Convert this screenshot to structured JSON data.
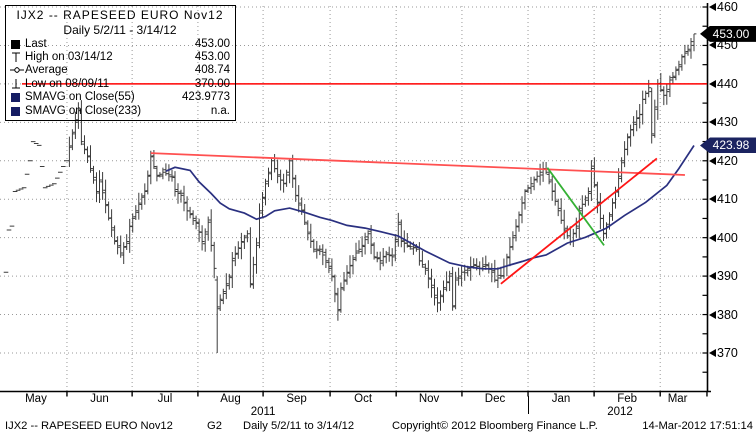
{
  "legend": {
    "title": "IJX2 -- RAPESEED  EURO  Nov12",
    "subtitle": "Daily 5/2/11 - 3/14/12",
    "rows": [
      {
        "marker": "last",
        "label": "Last",
        "value": "453.00"
      },
      {
        "marker": "high",
        "label": "High on 03/14/12",
        "value": "453.00"
      },
      {
        "marker": "average",
        "label": "Average",
        "value": "408.74"
      },
      {
        "marker": "low",
        "label": "Low on 08/09/11",
        "value": "370.00"
      },
      {
        "marker": "sma",
        "label": "SMAVG on Close(55)",
        "value": "423.9773"
      },
      {
        "marker": "sma",
        "label": "SMAVG on Close(233)",
        "value": "n.a."
      }
    ]
  },
  "footer": {
    "ticker": "IJX2 -- RAPESEED  EURO  Nov12",
    "tab": "G2",
    "range": "Daily  5/2/11 to 3/14/12",
    "copyright": "Copyright© 2012 Bloomberg Finance L.P.",
    "timestamp": "14-Mar-2012 17:51:14"
  },
  "chart_data": {
    "type": "ohlc-bar",
    "title": "IJX2 -- RAPESEED EURO Nov12",
    "period": "Daily 5/2/11 - 3/14/12",
    "last": 453.0,
    "high_on": {
      "date": "03/14/12",
      "value": 453.0
    },
    "low_on": {
      "date": "08/09/11",
      "value": 370.0
    },
    "average": 408.74,
    "sma55_last": 423.9773,
    "ylim": [
      363,
      462
    ],
    "yticks": [
      370,
      380,
      390,
      400,
      410,
      420,
      430,
      440,
      450,
      460
    ],
    "ytick_minor_step": 5,
    "grid": "dotted",
    "days_total": 228,
    "flat_dash_through_day": 20,
    "x_months": [
      "May",
      "Jun",
      "Jul",
      "Aug",
      "Sep",
      "Oct",
      "Nov",
      "Dec",
      "Jan",
      "Feb",
      "Mar"
    ],
    "month_boundaries_day": [
      20.2,
      41.8,
      63.6,
      85.2,
      107.4,
      129.3,
      151.1,
      173.0,
      194.9,
      216.8
    ],
    "x_years": [
      {
        "label": "2011",
        "day": 85.2
      },
      {
        "label": "2012",
        "day": 203.5
      }
    ],
    "year_separator_day": 173.0,
    "close_path": [
      [
        0,
        391
      ],
      [
        1,
        402
      ],
      [
        2,
        403
      ],
      [
        3,
        412
      ],
      [
        6,
        413
      ],
      [
        8,
        420
      ],
      [
        9,
        425
      ],
      [
        11,
        424
      ],
      [
        13,
        413
      ],
      [
        16,
        414
      ],
      [
        18,
        417
      ],
      [
        20,
        420
      ],
      [
        22,
        427
      ],
      [
        24,
        433
      ],
      [
        25,
        425
      ],
      [
        27,
        421
      ],
      [
        30,
        412
      ],
      [
        31,
        415
      ],
      [
        34,
        405
      ],
      [
        36,
        399
      ],
      [
        38,
        396
      ],
      [
        40,
        399
      ],
      [
        41,
        403
      ],
      [
        44,
        409
      ],
      [
        46,
        412
      ],
      [
        47,
        416
      ],
      [
        48,
        421
      ],
      [
        50,
        416
      ],
      [
        52,
        417
      ],
      [
        55,
        416
      ],
      [
        56,
        412
      ],
      [
        58,
        411
      ],
      [
        60,
        407
      ],
      [
        63,
        404
      ],
      [
        65,
        399
      ],
      [
        67,
        404
      ],
      [
        69,
        392
      ],
      [
        70,
        382
      ],
      [
        72,
        386
      ],
      [
        74,
        390
      ],
      [
        75,
        394
      ],
      [
        78,
        399
      ],
      [
        80,
        401
      ],
      [
        81,
        388
      ],
      [
        83,
        398
      ],
      [
        84,
        407
      ],
      [
        86,
        414
      ],
      [
        88,
        420
      ],
      [
        90,
        416
      ],
      [
        92,
        414
      ],
      [
        94,
        420
      ],
      [
        96,
        411
      ],
      [
        98,
        407
      ],
      [
        100,
        401
      ],
      [
        102,
        397
      ],
      [
        104,
        397
      ],
      [
        106,
        394
      ],
      [
        108,
        390
      ],
      [
        110,
        381
      ],
      [
        111,
        387
      ],
      [
        113,
        391
      ],
      [
        116,
        396
      ],
      [
        118,
        398
      ],
      [
        120,
        401
      ],
      [
        122,
        395
      ],
      [
        124,
        394
      ],
      [
        126,
        396
      ],
      [
        128,
        395
      ],
      [
        130,
        404
      ],
      [
        131,
        399
      ],
      [
        133,
        398
      ],
      [
        136,
        397
      ],
      [
        137,
        394
      ],
      [
        139,
        392
      ],
      [
        141,
        387
      ],
      [
        143,
        383
      ],
      [
        145,
        387
      ],
      [
        147,
        390
      ],
      [
        148,
        382
      ],
      [
        149,
        389
      ],
      [
        151,
        391
      ],
      [
        153,
        392
      ],
      [
        155,
        393
      ],
      [
        157,
        392
      ],
      [
        159,
        393
      ],
      [
        161,
        391
      ],
      [
        162,
        389
      ],
      [
        164,
        390
      ],
      [
        166,
        395
      ],
      [
        168,
        400
      ],
      [
        170,
        406
      ],
      [
        172,
        412
      ],
      [
        174,
        414
      ],
      [
        176,
        416
      ],
      [
        178,
        418
      ],
      [
        179,
        417
      ],
      [
        181,
        412
      ],
      [
        183,
        407
      ],
      [
        185,
        402
      ],
      [
        187,
        399
      ],
      [
        189,
        403
      ],
      [
        190,
        407
      ],
      [
        193,
        412
      ],
      [
        194,
        418
      ],
      [
        196,
        409
      ],
      [
        198,
        401
      ],
      [
        200,
        406
      ],
      [
        202,
        412
      ],
      [
        204,
        420
      ],
      [
        206,
        426
      ],
      [
        208,
        430
      ],
      [
        210,
        432
      ],
      [
        211,
        436
      ],
      [
        213,
        439
      ],
      [
        214,
        427
      ],
      [
        215,
        434
      ],
      [
        216,
        440
      ],
      [
        218,
        437
      ],
      [
        219,
        438
      ],
      [
        220,
        441
      ],
      [
        221,
        442
      ],
      [
        223,
        445
      ],
      [
        224,
        447
      ],
      [
        226,
        449
      ],
      [
        227,
        451
      ],
      [
        228,
        453
      ]
    ],
    "special_bars": {
      "70": [
        389,
        390,
        370,
        382
      ],
      "214": [
        438,
        439,
        424.5,
        427
      ],
      "228": [
        450,
        453,
        448.5,
        453
      ]
    },
    "sma55_path": [
      [
        53,
        417.3
      ],
      [
        56,
        418.3
      ],
      [
        61,
        417.5
      ],
      [
        64,
        414.5
      ],
      [
        68,
        411.5
      ],
      [
        71,
        409
      ],
      [
        74,
        407.5
      ],
      [
        79,
        406.4
      ],
      [
        83,
        404.8
      ],
      [
        86,
        405.5
      ],
      [
        89,
        407
      ],
      [
        94,
        407.7
      ],
      [
        99,
        406.6
      ],
      [
        104,
        405.3
      ],
      [
        108,
        404.5
      ],
      [
        113,
        403.2
      ],
      [
        119,
        402.5
      ],
      [
        125,
        401.4
      ],
      [
        130,
        400.4
      ],
      [
        134,
        398.7
      ],
      [
        139,
        396.5
      ],
      [
        147,
        393.4
      ],
      [
        153,
        392.4
      ],
      [
        158,
        391.9
      ],
      [
        163,
        391.9
      ],
      [
        167,
        392.9
      ],
      [
        171,
        393.8
      ],
      [
        175,
        394.8
      ],
      [
        179,
        395.5
      ],
      [
        186,
        398.6
      ],
      [
        192,
        400.1
      ],
      [
        199,
        402.5
      ],
      [
        205,
        405.8
      ],
      [
        212,
        409.2
      ],
      [
        219,
        413.6
      ],
      [
        223,
        418
      ],
      [
        228,
        423.98
      ]
    ],
    "trendlines": [
      {
        "name": "resistance-440-horizontal",
        "color": "#ff0000",
        "width": 1.5,
        "from": [
          5.3,
          440
        ],
        "to": [
          232.3,
          440
        ]
      },
      {
        "name": "long-downtrend",
        "color": "#ff5050",
        "width": 1.8,
        "from": [
          48,
          422
        ],
        "to": [
          225,
          416.3
        ]
      },
      {
        "name": "uptrend",
        "color": "#ff1515",
        "width": 1.8,
        "from": [
          164,
          388
        ],
        "to": [
          215.7,
          420.6
        ]
      },
      {
        "name": "short-downtrend-green",
        "color": "#35b135",
        "width": 1.8,
        "from": [
          179.4,
          418.2
        ],
        "to": [
          198.2,
          398
        ]
      }
    ],
    "price_tags": [
      {
        "text": "453.00",
        "price": 453,
        "bg": "#000000"
      },
      {
        "text": "423.98",
        "price": 423.98,
        "bg": "#1b2360"
      }
    ],
    "colors": {
      "bar": "#3c3c3c",
      "sma": "#2a3080",
      "grid": "#999999",
      "axis": "#000000",
      "navy": "#151c63"
    }
  }
}
